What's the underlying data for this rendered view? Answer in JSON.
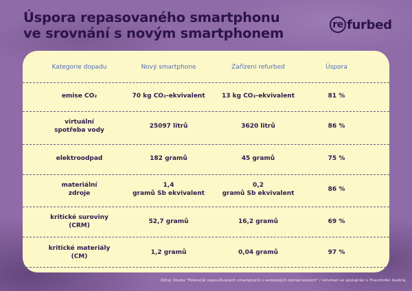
{
  "title": {
    "line1": "Úspora repasovaného smartphonu",
    "line2": "ve srovnání s novým smartphonem"
  },
  "logo": {
    "circle_text": "re",
    "text": "furbed"
  },
  "table": {
    "headers": [
      "Kategorie dopadu",
      "Nový smartphone",
      "Zařízení refurbed",
      "Úspora"
    ],
    "rows": [
      {
        "category": [
          "emise CO₂"
        ],
        "new": [
          "70 kg CO₂-ekvivalent"
        ],
        "refurbed": [
          "13 kg CO₂-ekvivalent"
        ],
        "saving": "81 %"
      },
      {
        "category": [
          "virtuální",
          "spotřeba vody"
        ],
        "new": [
          "25097 litrů"
        ],
        "refurbed": [
          "3620 litrů"
        ],
        "saving": "86 %"
      },
      {
        "category": [
          "elektroodpad"
        ],
        "new": [
          "182 gramů"
        ],
        "refurbed": [
          "45 gramů"
        ],
        "saving": "75 %"
      },
      {
        "category": [
          "materiální",
          "zdroje"
        ],
        "new": [
          "1,4",
          "gramů Sb ekvivalent"
        ],
        "refurbed": [
          "0,2",
          "gramů Sb ekvivalent"
        ],
        "saving": "86 %"
      },
      {
        "category": [
          "kritické suroviny",
          "(CRM)"
        ],
        "new": [
          "52,7 gramů"
        ],
        "refurbed": [
          "16,2 gramů"
        ],
        "saving": "69 %"
      },
      {
        "category": [
          "kritické materiály",
          "(CM)"
        ],
        "new": [
          "1,2 gramů"
        ],
        "refurbed": [
          "0,04 gramů"
        ],
        "saving": "97 %"
      }
    ]
  },
  "source": "Zdroj: Studie \"Potenciál nepoužívaných  smartphonů v evropských domácnostech\" / refurbed ve spolupráci s Fraunhofer Austria."
}
